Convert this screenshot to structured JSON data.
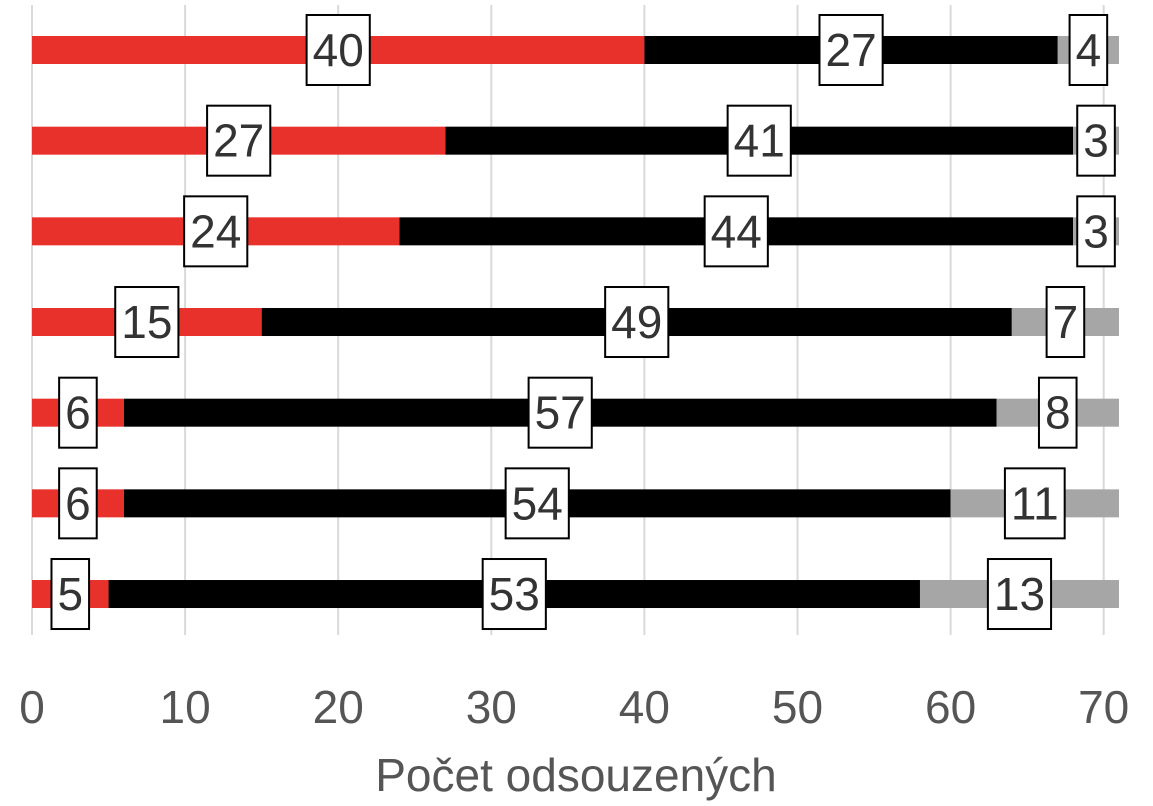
{
  "chart_data": {
    "type": "stacked-barh",
    "x_label": "Počet odsouzených",
    "categories": [
      null,
      null,
      null,
      null,
      null,
      null,
      null
    ],
    "series": [
      {
        "color": "#e8312a",
        "values": [
          40,
          27,
          24,
          15,
          6,
          6,
          5
        ]
      },
      {
        "color": "#000000",
        "values": [
          27,
          41,
          44,
          49,
          57,
          54,
          53
        ]
      },
      {
        "color": "#a6a6a6",
        "values": [
          4,
          3,
          3,
          7,
          8,
          11,
          13
        ]
      }
    ],
    "xlim": [
      0,
      71
    ],
    "xticks": [
      0,
      10,
      20,
      30,
      40,
      50,
      60,
      70
    ],
    "grid": true
  }
}
